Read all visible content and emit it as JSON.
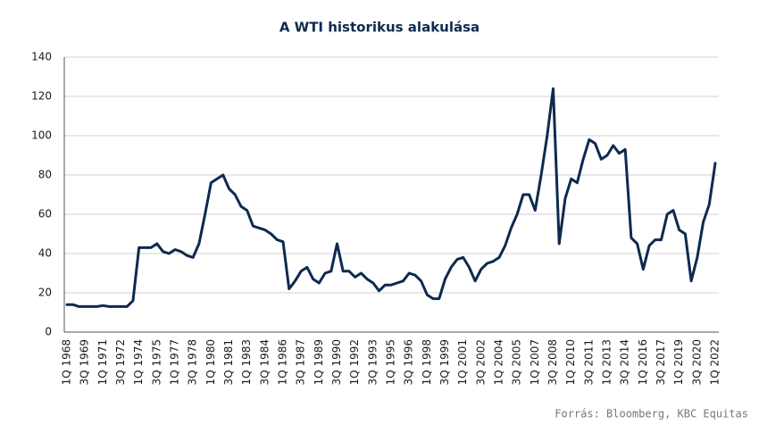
{
  "chart_data": {
    "type": "line",
    "title": "A WTI historikus alakulása",
    "note": "Forrás: Bloomberg, KBC Equitas",
    "categories": [
      "1Q 1968",
      null,
      null,
      "3Q 1969",
      null,
      null,
      "1Q 1971",
      null,
      null,
      "3Q 1972",
      null,
      null,
      "1Q 1974",
      null,
      null,
      "3Q 1975",
      null,
      null,
      "1Q 1977",
      null,
      null,
      "3Q 1978",
      null,
      null,
      "1Q 1980",
      null,
      null,
      "3Q 1981",
      null,
      null,
      "1Q 1983",
      null,
      null,
      "3Q 1984",
      null,
      null,
      "1Q 1986",
      null,
      null,
      "3Q 1987",
      null,
      null,
      "1Q 1989",
      null,
      null,
      "3Q 1990",
      null,
      null,
      "1Q 1992",
      null,
      null,
      "3Q 1993",
      null,
      null,
      "1Q 1995",
      null,
      null,
      "3Q 1996",
      null,
      null,
      "1Q 1998",
      null,
      null,
      "3Q 1999",
      null,
      null,
      "1Q 2001",
      null,
      null,
      "3Q 2002",
      null,
      null,
      "1Q 2004",
      null,
      null,
      "3Q 2005",
      null,
      null,
      "1Q 2007",
      null,
      null,
      "3Q 2008",
      null,
      null,
      "1Q 2010",
      null,
      null,
      "3Q 2011",
      null,
      null,
      "1Q 2013",
      null,
      null,
      "3Q 2014",
      null,
      null,
      "1Q 2016",
      null,
      null,
      "3Q 2017",
      null,
      null,
      "1Q 2019",
      null,
      null,
      "3Q 2020",
      null,
      null,
      "1Q 2022"
    ],
    "series": [
      {
        "color": "#0d2a4f",
        "values": [
          14,
          14,
          13,
          13,
          13,
          13,
          13.5,
          13,
          13,
          13,
          13,
          16,
          43,
          43,
          43,
          45,
          41,
          40,
          42,
          41,
          39,
          38,
          45,
          60,
          76,
          78,
          80,
          73,
          70,
          64,
          62,
          54,
          53,
          52,
          50,
          47,
          46,
          22,
          26,
          31,
          33,
          27,
          25,
          30,
          31,
          45,
          31,
          31,
          28,
          30,
          27,
          25,
          21,
          24,
          24,
          25,
          26,
          30,
          29,
          26,
          19,
          17,
          17,
          27,
          33,
          37,
          38,
          33,
          26,
          32,
          35,
          36,
          38,
          44,
          53,
          60,
          70,
          70,
          62,
          80,
          100,
          124,
          45,
          68,
          78,
          76,
          88,
          98,
          96,
          88,
          90,
          95,
          91,
          93,
          48,
          45,
          32,
          44,
          47,
          47,
          60,
          62,
          52,
          50,
          26,
          38,
          56,
          65,
          86
        ]
      }
    ],
    "ylim": [
      0,
      140
    ],
    "yticks": [
      0,
      20,
      40,
      60,
      80,
      100,
      120,
      140
    ],
    "grid": true
  }
}
